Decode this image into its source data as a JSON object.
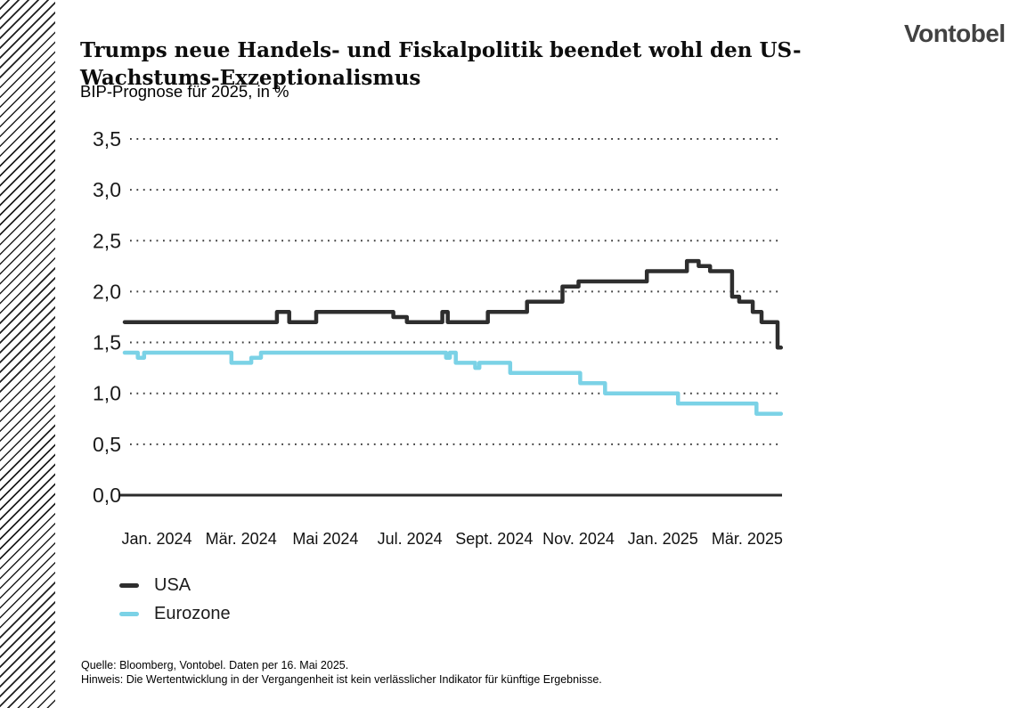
{
  "header": {
    "title": "Trumps neue Handels- und Fiskalpolitik beendet wohl den US-Wachstums-Exzeptionalismus",
    "subtitle": "BIP-Prognose für 2025, in %",
    "logo": "Vontobel"
  },
  "chart_data": {
    "type": "line",
    "style": "step-after",
    "title": "BIP-Prognose für 2025, in %",
    "grid": "dotted-horizontal",
    "legend_position": "bottom-left",
    "x_axis": {
      "unit": "months since Jan. 2024",
      "domain_months": [
        -0.76,
        14.8
      ],
      "tick_months": [
        0,
        2,
        4,
        6,
        8,
        10,
        12,
        14
      ],
      "ticks": [
        "Jan. 2024",
        "Mär. 2024",
        "Mai 2024",
        "Jul. 2024",
        "Sept. 2024",
        "Nov. 2024",
        "Jan. 2025",
        "Mär. 2025"
      ]
    },
    "y_axis": {
      "range": [
        0.0,
        3.5
      ],
      "tick_values": [
        3.5,
        3.0,
        2.5,
        2.0,
        1.5,
        1.0,
        0.5,
        0.0
      ],
      "ticks": [
        "3,5",
        "3,0",
        "2,5",
        "2,0",
        "1,5",
        "1,0",
        "0,5",
        "0,0"
      ]
    },
    "series": [
      {
        "name": "USA",
        "color": "#2e2e2e",
        "points": [
          [
            -0.76,
            1.7
          ],
          [
            2.85,
            1.8
          ],
          [
            3.14,
            1.7
          ],
          [
            3.78,
            1.8
          ],
          [
            5.61,
            1.75
          ],
          [
            5.93,
            1.7
          ],
          [
            6.77,
            1.8
          ],
          [
            6.9,
            1.7
          ],
          [
            7.85,
            1.8
          ],
          [
            8.78,
            1.9
          ],
          [
            9.62,
            2.05
          ],
          [
            10.0,
            2.1
          ],
          [
            11.62,
            2.2
          ],
          [
            12.57,
            2.3
          ],
          [
            12.85,
            2.25
          ],
          [
            13.12,
            2.2
          ],
          [
            13.64,
            1.95
          ],
          [
            13.81,
            1.9
          ],
          [
            14.13,
            1.8
          ],
          [
            14.34,
            1.7
          ],
          [
            14.72,
            1.45
          ]
        ]
      },
      {
        "name": "Eurozone",
        "color": "#7bd2e6",
        "points": [
          [
            -0.76,
            1.4
          ],
          [
            -0.45,
            1.35
          ],
          [
            -0.3,
            1.4
          ],
          [
            1.77,
            1.3
          ],
          [
            2.24,
            1.35
          ],
          [
            2.47,
            1.4
          ],
          [
            6.86,
            1.35
          ],
          [
            6.95,
            1.4
          ],
          [
            7.09,
            1.3
          ],
          [
            7.55,
            1.25
          ],
          [
            7.65,
            1.3
          ],
          [
            8.38,
            1.2
          ],
          [
            10.04,
            1.1
          ],
          [
            10.63,
            1.0
          ],
          [
            12.36,
            0.9
          ],
          [
            14.22,
            0.8
          ]
        ]
      }
    ]
  },
  "legend": {
    "items": [
      {
        "label": "USA",
        "color": "#2e2e2e"
      },
      {
        "label": "Eurozone",
        "color": "#7bd2e6"
      }
    ]
  },
  "footer": {
    "source": "Quelle: Bloomberg, Vontobel. Daten per  16. Mai 2025.",
    "note": "Hinweis: Die Wertentwicklung in der Vergangenheit ist kein verlässlicher Indikator für künftige Ergebnisse."
  }
}
